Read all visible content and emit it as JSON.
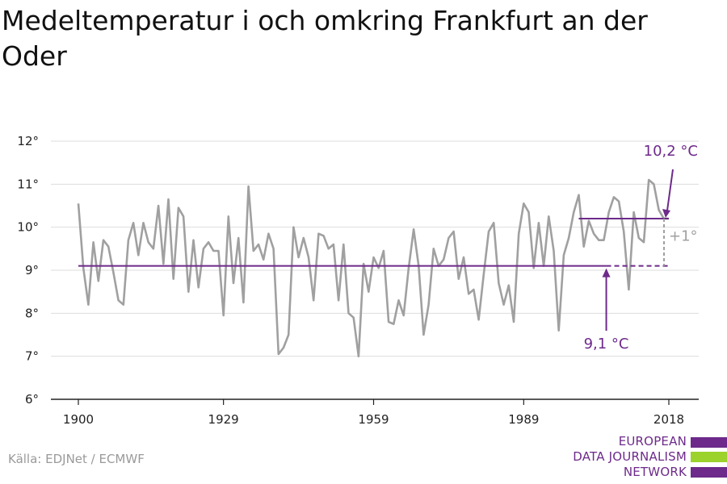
{
  "title": "Medeltemperatur i och omkring Frankfurt an der Oder",
  "source": "Källa: EDJNet / ECMWF",
  "logo": {
    "lines": [
      "EUROPEAN",
      "DATA JOURNALISM",
      "NETWORK"
    ],
    "colors": [
      "#6d2a8a",
      "#9bd22c",
      "#6d2a8a"
    ]
  },
  "colors": {
    "series": "#a0a0a0",
    "accent": "#6d2a8a",
    "grid": "#dddddd",
    "axis": "#222222",
    "delta": "#a0a0a0"
  },
  "chart_data": {
    "type": "line",
    "title": "Medeltemperatur i och omkring Frankfurt an der Oder",
    "xlabel": "",
    "ylabel": "",
    "xlim": [
      1900,
      2018
    ],
    "ylim": [
      6,
      12
    ],
    "grid": true,
    "y_ticks": [
      6,
      7,
      8,
      9,
      10,
      11,
      12
    ],
    "y_tick_labels": [
      "6°",
      "7°",
      "8°",
      "9°",
      "10°",
      "11°",
      "12°"
    ],
    "x_ticks": [
      1900,
      1929,
      1959,
      1989,
      2018
    ],
    "x_tick_labels": [
      "1900",
      "1929",
      "1959",
      "1989",
      "2018"
    ],
    "series": [
      {
        "x": [
          1900,
          1901,
          1902,
          1903,
          1904,
          1905,
          1906,
          1907,
          1908,
          1909,
          1910,
          1911,
          1912,
          1913,
          1914,
          1915,
          1916,
          1917,
          1918,
          1919,
          1920,
          1921,
          1922,
          1923,
          1924,
          1925,
          1926,
          1927,
          1928,
          1929,
          1930,
          1931,
          1932,
          1933,
          1934,
          1935,
          1936,
          1937,
          1938,
          1939,
          1940,
          1941,
          1942,
          1943,
          1944,
          1945,
          1946,
          1947,
          1948,
          1949,
          1950,
          1951,
          1952,
          1953,
          1954,
          1955,
          1956,
          1957,
          1958,
          1959,
          1960,
          1961,
          1962,
          1963,
          1964,
          1965,
          1966,
          1967,
          1968,
          1969,
          1970,
          1971,
          1972,
          1973,
          1974,
          1975,
          1976,
          1977,
          1978,
          1979,
          1980,
          1981,
          1982,
          1983,
          1984,
          1985,
          1986,
          1987,
          1988,
          1989,
          1990,
          1991,
          1992,
          1993,
          1994,
          1995,
          1996,
          1997,
          1998,
          1999,
          2000,
          2001,
          2002,
          2003,
          2004,
          2005,
          2006,
          2007,
          2008,
          2009,
          2010,
          2011,
          2012,
          2013,
          2014,
          2015,
          2016,
          2017,
          2018
        ],
        "values": [
          10.55,
          9.05,
          8.2,
          9.65,
          8.75,
          9.7,
          9.55,
          8.95,
          8.3,
          8.2,
          9.7,
          10.1,
          9.35,
          10.1,
          9.65,
          9.5,
          10.5,
          9.15,
          10.65,
          8.8,
          10.45,
          10.25,
          8.5,
          9.7,
          8.6,
          9.5,
          9.65,
          9.45,
          9.45,
          7.95,
          10.25,
          8.7,
          9.75,
          8.25,
          10.95,
          9.45,
          9.6,
          9.25,
          9.85,
          9.5,
          7.05,
          7.2,
          7.5,
          10.0,
          9.3,
          9.75,
          9.3,
          8.3,
          9.85,
          9.8,
          9.5,
          9.6,
          8.3,
          9.6,
          8.0,
          7.9,
          7.0,
          9.15,
          8.5,
          9.3,
          9.05,
          9.45,
          7.8,
          7.75,
          8.3,
          7.95,
          9.05,
          9.95,
          9.1,
          7.5,
          8.2,
          9.5,
          9.1,
          9.25,
          9.75,
          9.9,
          8.8,
          9.3,
          8.45,
          8.55,
          7.85,
          8.9,
          9.9,
          10.1,
          8.7,
          8.2,
          8.65,
          7.8,
          9.85,
          10.55,
          10.35,
          9.05,
          10.1,
          9.1,
          10.25,
          9.45,
          7.6,
          9.35,
          9.75,
          10.35,
          10.75,
          9.55,
          10.15,
          9.85,
          9.7,
          9.7,
          10.35,
          10.7,
          10.6,
          9.9,
          8.55,
          10.35,
          9.75,
          9.65,
          11.1,
          11.0,
          10.4,
          10.2,
          10.2
        ]
      }
    ],
    "annotations": {
      "baseline": {
        "value": 9.1,
        "from": 1900,
        "to": 2018,
        "label": "9,1 °C"
      },
      "recent": {
        "value": 10.2,
        "from": 2000,
        "to": 2018,
        "label": "10,2 °C"
      },
      "delta_label": "+1°"
    }
  }
}
